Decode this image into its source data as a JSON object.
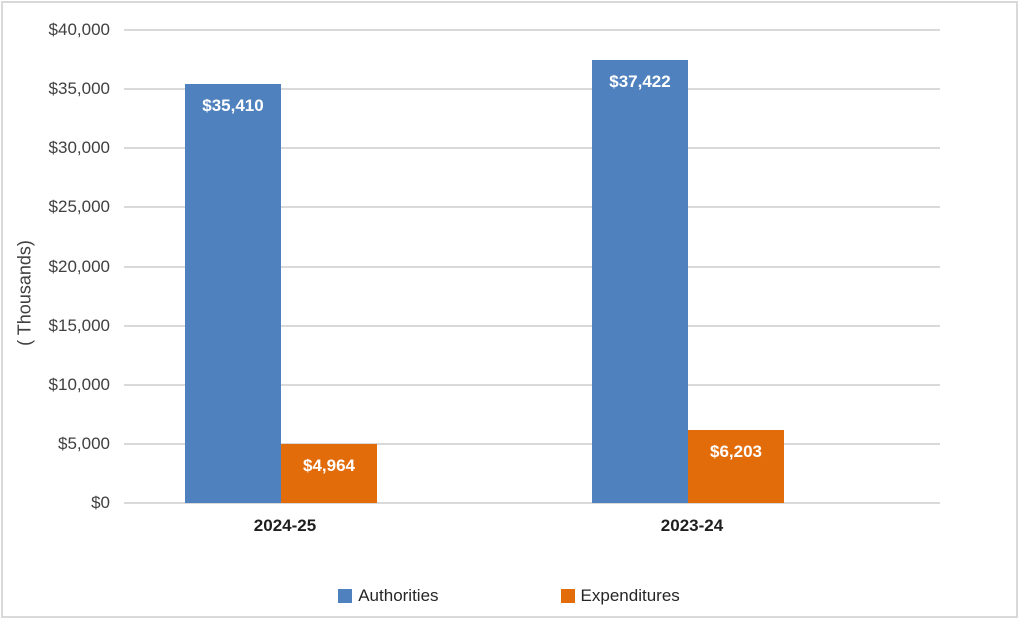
{
  "chart_data": {
    "type": "bar",
    "title": "",
    "categories": [
      "2024-25",
      "2023-24"
    ],
    "series": [
      {
        "name": "Authorities",
        "color": "#4E81BD",
        "values": [
          35410,
          37422
        ],
        "data_labels": [
          "$35,410",
          "$37,422"
        ]
      },
      {
        "name": "Expenditures",
        "color": "#E26B0A",
        "values": [
          4964,
          6203
        ],
        "data_labels": [
          "$4,964",
          "$6,203"
        ]
      }
    ],
    "xlabel": "",
    "ylabel": "( Thousands)",
    "ylim": [
      0,
      40000
    ],
    "ytick_step": 5000,
    "ytick_labels": [
      "$40,000",
      "$35,000",
      "$30,000",
      "$25,000",
      "$20,000",
      "$15,000",
      "$10,000",
      "$5,000",
      "$0"
    ],
    "grid": true,
    "legend_position": "bottom",
    "colors": {
      "gridline": "#D9D9D9",
      "frame_border": "#D9D9D9",
      "tick_label": "#404040",
      "category_label": "#1F1F1F",
      "data_label": "#FFFFFF",
      "background": "#FFFFFF"
    }
  }
}
